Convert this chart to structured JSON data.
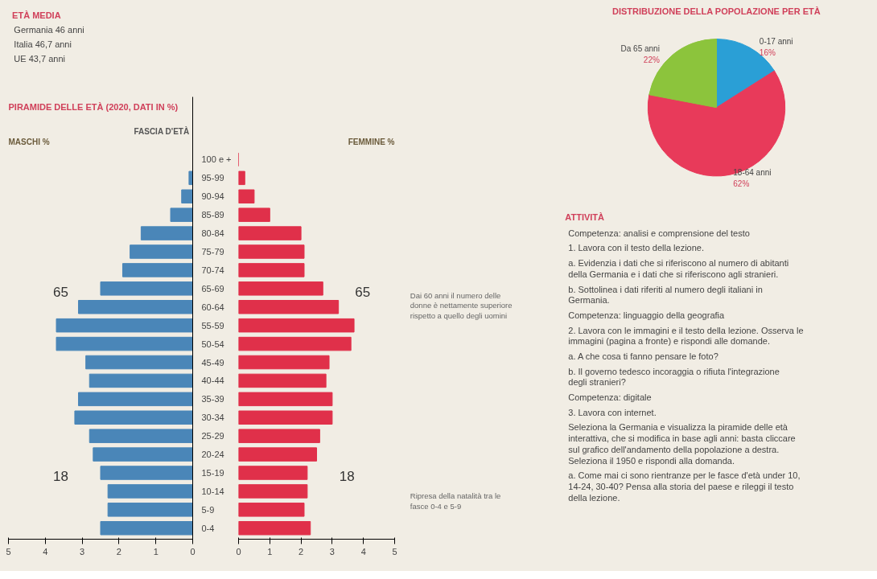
{
  "chart_data": [
    {
      "type": "other",
      "title": "ETÀ MEDIA",
      "annotations": [
        "Germania 46 anni",
        "Italia 46,7 anni",
        "UE 43,7 anni"
      ]
    },
    {
      "type": "bar",
      "orientation": "horizontal",
      "title": "PIRAMIDE DELLE ETÀ (2020, DATI IN %)",
      "xlabel": "MASCHI %",
      "ylabel": "FASCIA D'ETÀ",
      "categories": [
        "100 e +",
        "95-99",
        "90-94",
        "85-89",
        "80-84",
        "75-79",
        "70-74",
        "65-69",
        "60-64",
        "55-59",
        "50-54",
        "45-49",
        "40-44",
        "35-39",
        "30-34",
        "25-29",
        "20-24",
        "15-19",
        "10-14",
        "5-9",
        "0-4"
      ],
      "series": [
        {
          "color": "#4a86b8",
          "values": [
            0,
            0.1,
            0.3,
            0.6,
            1.4,
            1.7,
            1.9,
            2.5,
            3.1,
            3.7,
            3.7,
            2.9,
            2.8,
            3.1,
            3.2,
            2.8,
            2.7,
            2.5,
            2.3,
            2.3,
            2.5
          ]
        }
      ],
      "xlim": [
        5,
        0
      ],
      "xticks": [
        5,
        4,
        3,
        2,
        1,
        0
      ],
      "grid": false,
      "annotations": [
        {
          "text": "65",
          "x": 2.5,
          "y": "65-69"
        },
        {
          "text": "18",
          "x": 2.5,
          "y": "15-19"
        }
      ]
    },
    {
      "type": "bar",
      "orientation": "horizontal",
      "xlabel": "FEMMINE %",
      "categories": [
        "100 e +",
        "95-99",
        "90-94",
        "85-89",
        "80-84",
        "75-79",
        "70-74",
        "65-69",
        "60-64",
        "55-59",
        "50-54",
        "45-49",
        "40-44",
        "35-39",
        "30-34",
        "25-29",
        "20-24",
        "15-19",
        "10-14",
        "5-9",
        "0-4"
      ],
      "series": [
        {
          "color": "#e0304a",
          "values": [
            0,
            0.2,
            0.5,
            1.0,
            2.0,
            2.1,
            2.1,
            2.7,
            3.2,
            3.7,
            3.6,
            2.9,
            2.8,
            3.0,
            3.0,
            2.6,
            2.5,
            2.2,
            2.2,
            2.1,
            2.3
          ]
        }
      ],
      "xlim": [
        0,
        5
      ],
      "xticks": [
        0,
        1,
        2,
        3,
        4,
        5
      ],
      "grid": false,
      "tick_labels": "x",
      "annotations": [
        {
          "text": "65",
          "x": 2.7,
          "y": "65-69"
        },
        {
          "text": "18",
          "x": 2.2,
          "y": "15-19"
        },
        "Dai 60 anni il numero delle donne è nettamente superiore rispetto a quello degli uomini",
        "Ripresa della natalità tra le fasce 0-4 e 5-9"
      ]
    },
    {
      "type": "pie",
      "title": "DISTRIBUZIONE DELLA POPOLAZIONE PER ETÀ",
      "categories": [
        "0-17 anni",
        "18-64 anni",
        "Da 65 anni"
      ],
      "values": [
        16,
        62,
        22
      ],
      "colors": [
        "#2a9fd6",
        "#e83a5a",
        "#8cc43c"
      ],
      "value_labels": [
        "16%",
        "62%",
        "22%"
      ]
    },
    {
      "type": "other",
      "title": "ATTIVITÀ",
      "annotations": [
        "Competenza: analisi e comprensione del testo",
        "1. Lavora con il testo della lezione.",
        "a. Evidenzia i dati che si riferiscono al numero di abitanti della Germania e i dati che si riferiscono agli stranieri.",
        "b. Sottolinea i dati riferiti al numero degli italiani in Germania.",
        "Competenza: linguaggio della geografia",
        "2. Lavora con le immagini e il testo della lezione. Osserva le immagini (pagina a fronte) e rispondi alle domande.",
        "a. A che cosa ti fanno pensare le foto?",
        "b. Il governo tedesco incoraggia o rifiuta l'integrazione degli stranieri?",
        "Competenza: digitale",
        "3. Lavora con internet.",
        "Seleziona la Germania e visualizza la piramide delle età interattiva, che si modifica in base agli anni: basta cliccare sul grafico dell'andamento della popolazione a destra. Seleziona il 1950 e rispondi alla domanda.",
        "a. Come mai ci sono rientranze per le fasce d'età under 10, 14-24, 30-40? Pensa alla storia del paese e rileggi il testo della lezione."
      ]
    }
  ]
}
